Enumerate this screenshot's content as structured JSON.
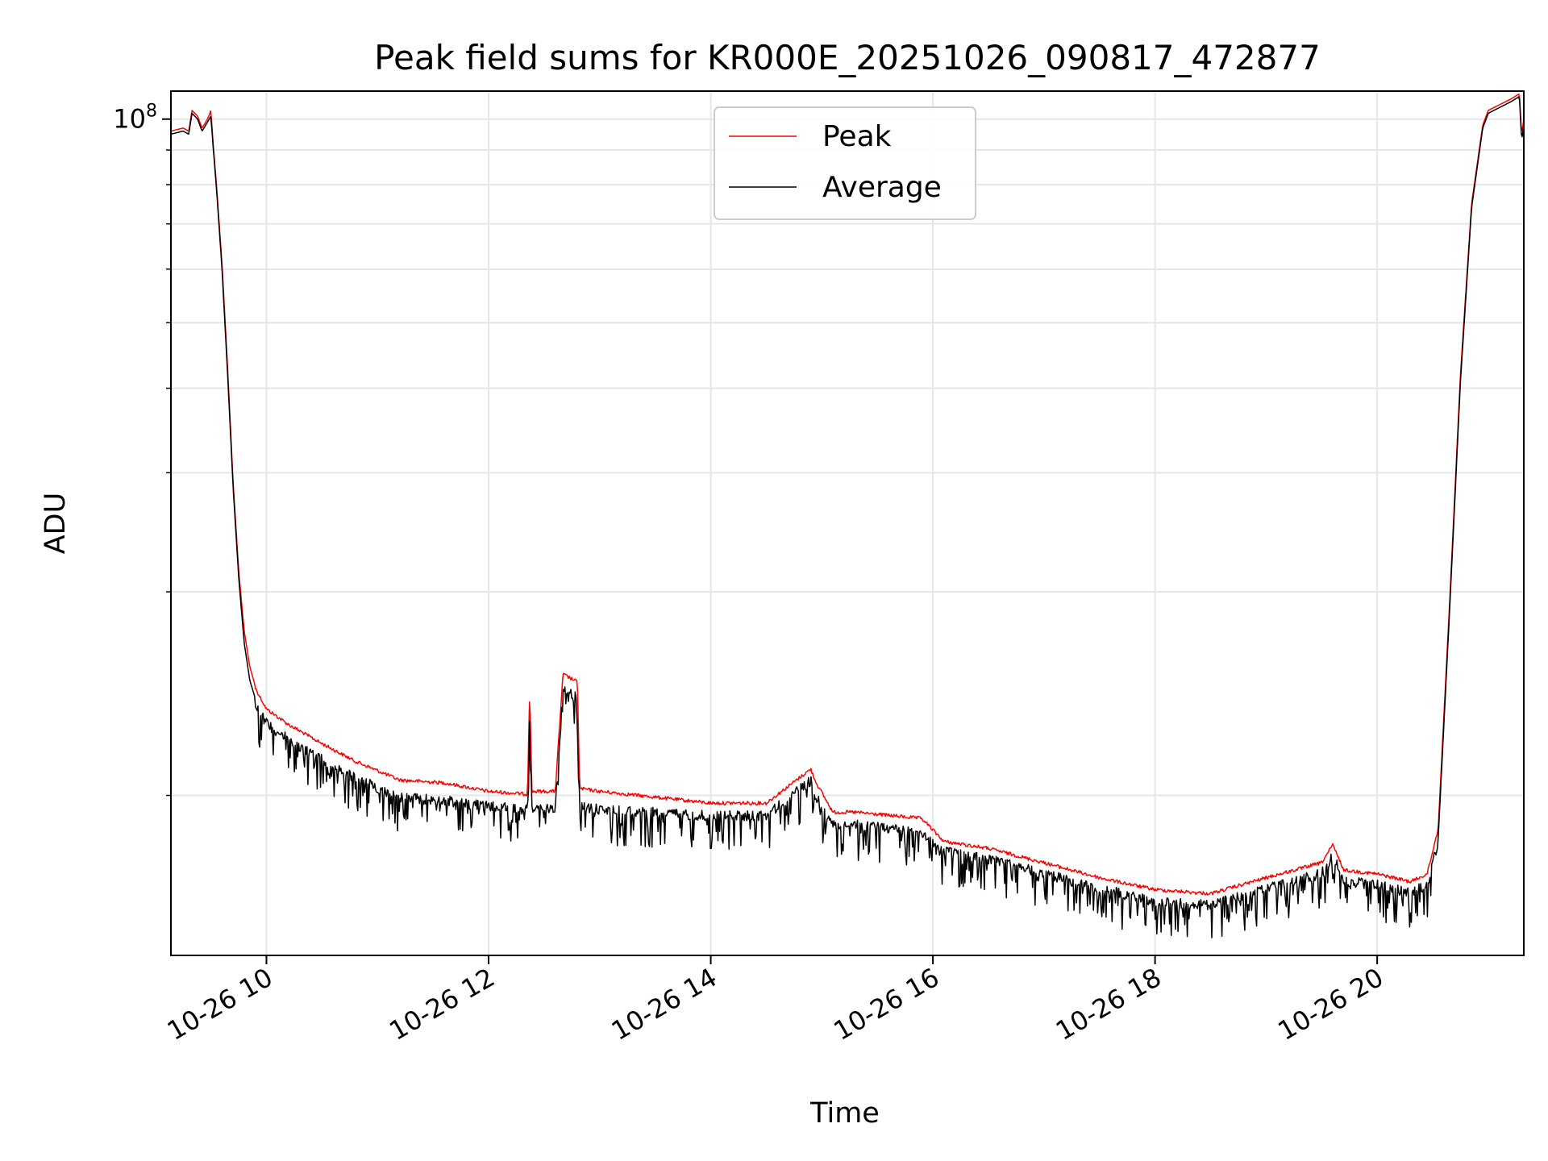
{
  "chart_data": {
    "type": "line",
    "title": "Peak field sums for KR000E_20251026_090817_472877",
    "xlabel": "Time",
    "ylabel": "ADU",
    "y_scale": "log",
    "x_unit": "hours on 2025-10-26",
    "xlim": [
      9.14,
      21.32
    ],
    "ylim": [
      5800000,
      110000000
    ],
    "x_ticks": [
      {
        "value": 10,
        "label": "10-26 10"
      },
      {
        "value": 12,
        "label": "10-26 12"
      },
      {
        "value": 14,
        "label": "10-26 14"
      },
      {
        "value": 16,
        "label": "10-26 16"
      },
      {
        "value": 18,
        "label": "10-26 18"
      },
      {
        "value": 20,
        "label": "10-26 20"
      }
    ],
    "y_major_ticks": [
      {
        "value": 100000000,
        "base": "10",
        "exp": "8"
      }
    ],
    "y_minor_ticks": [
      10000000,
      20000000,
      30000000,
      40000000,
      50000000,
      60000000,
      70000000,
      80000000,
      90000000
    ],
    "grid": true,
    "legend": {
      "position": "top-center",
      "entries": [
        {
          "name": "Peak",
          "color": "#ff0000"
        },
        {
          "name": "Average",
          "color": "#000000"
        }
      ]
    },
    "series": [
      {
        "name": "Peak",
        "color": "#ff0000",
        "line_width": 1.5,
        "x": [
          9.14,
          9.25,
          9.3,
          9.33,
          9.38,
          9.42,
          9.47,
          9.5,
          9.52,
          9.55,
          9.6,
          9.65,
          9.7,
          9.75,
          9.8,
          9.85,
          9.9,
          10.0,
          10.2,
          10.5,
          10.8,
          11.2,
          11.6,
          12.0,
          12.35,
          12.37,
          12.39,
          12.6,
          12.67,
          12.8,
          12.82,
          13.0,
          13.5,
          14.0,
          14.5,
          14.9,
          14.95,
          15.1,
          15.3,
          15.9,
          16.1,
          16.5,
          17.0,
          17.5,
          18.0,
          18.5,
          19.0,
          19.5,
          19.6,
          19.7,
          20.0,
          20.3,
          20.45,
          20.55,
          20.65,
          20.75,
          20.85,
          20.95,
          21.0,
          21.1,
          21.2,
          21.28,
          21.3,
          21.32
        ],
        "y": [
          96000000,
          97000000,
          96000000,
          103000000,
          101000000,
          97000000,
          100000000,
          103000000,
          92000000,
          80000000,
          61000000,
          43000000,
          29000000,
          21500000,
          17500000,
          15500000,
          14500000,
          13500000,
          12800000,
          12000000,
          11300000,
          10600000,
          10500000,
          10200000,
          10100000,
          14500000,
          10200000,
          10200000,
          15200000,
          14800000,
          10300000,
          10200000,
          10000000,
          9800000,
          9800000,
          11000000,
          10500000,
          9500000,
          9500000,
          9300000,
          8600000,
          8400000,
          8000000,
          7600000,
          7300000,
          7200000,
          7600000,
          8000000,
          8500000,
          7800000,
          7700000,
          7500000,
          7700000,
          9000000,
          19000000,
          42000000,
          75000000,
          98000000,
          103000000,
          105000000,
          107000000,
          109000000,
          95000000,
          100000000
        ]
      },
      {
        "name": "Average",
        "color": "#000000",
        "line_width": 1.5,
        "x": [
          9.14,
          9.25,
          9.3,
          9.33,
          9.38,
          9.42,
          9.47,
          9.5,
          9.52,
          9.55,
          9.6,
          9.65,
          9.7,
          9.75,
          9.8,
          9.85,
          9.9,
          10.0,
          10.2,
          10.5,
          10.8,
          11.2,
          11.6,
          12.0,
          12.35,
          12.37,
          12.39,
          12.6,
          12.67,
          12.8,
          12.82,
          13.0,
          13.5,
          14.0,
          14.5,
          14.9,
          14.95,
          15.1,
          15.3,
          15.9,
          16.1,
          16.5,
          17.0,
          17.5,
          18.0,
          18.5,
          19.0,
          19.5,
          19.6,
          19.7,
          20.0,
          20.3,
          20.45,
          20.55,
          20.65,
          20.75,
          20.85,
          20.95,
          21.0,
          21.1,
          21.2,
          21.28,
          21.3,
          21.32
        ],
        "y": [
          95000000,
          96000000,
          95000000,
          102000000,
          100000000,
          96000000,
          99000000,
          101000000,
          91000000,
          79000000,
          60000000,
          42000000,
          28500000,
          21000000,
          16800000,
          14800000,
          13900000,
          13000000,
          12300000,
          11500000,
          10800000,
          10100000,
          10000000,
          9800000,
          9700000,
          13800000,
          9700000,
          9700000,
          14600000,
          14200000,
          9800000,
          9700000,
          9600000,
          9500000,
          9500000,
          10700000,
          10100000,
          9200000,
          9200000,
          9000000,
          8400000,
          8200000,
          7800000,
          7400000,
          7100000,
          7000000,
          7400000,
          7800000,
          8300000,
          7600000,
          7500000,
          7300000,
          7500000,
          8700000,
          18500000,
          41000000,
          74000000,
          97000000,
          102000000,
          104000000,
          106000000,
          108000000,
          93000000,
          98000000
        ]
      }
    ]
  }
}
